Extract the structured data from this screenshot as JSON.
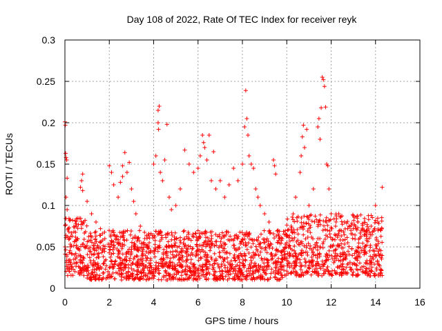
{
  "chart_data": {
    "type": "scatter",
    "title": "Day 108 of 2022, Rate Of TEC Index for receiver reyk",
    "xlabel": "GPS time / hours",
    "ylabel": "ROTI / TECUs",
    "xlim": [
      0,
      16
    ],
    "ylim": [
      0,
      0.3
    ],
    "x_ticks": [
      0,
      2,
      4,
      6,
      8,
      10,
      12,
      14,
      16
    ],
    "x_tick_labels": [
      "0",
      "2",
      "4",
      "6",
      "8",
      "10",
      "12",
      "14",
      "16"
    ],
    "y_ticks": [
      0,
      0.05,
      0.1,
      0.15,
      0.2,
      0.25,
      0.3
    ],
    "y_tick_labels": [
      "0",
      "0.05",
      "0.1",
      "0.15",
      "0.2",
      "0.25",
      "0.3"
    ],
    "grid": true,
    "marker": "+",
    "color": "#ff0000",
    "series": [
      {
        "name": "ROTI",
        "points": [
          [
            0.0,
            0.201
          ],
          [
            0.02,
            0.197
          ],
          [
            0.03,
            0.163
          ],
          [
            0.05,
            0.158
          ],
          [
            0.08,
            0.155
          ],
          [
            0.1,
            0.133
          ],
          [
            0.05,
            0.11
          ],
          [
            0.1,
            0.095
          ],
          [
            0.15,
            0.072
          ],
          [
            0.2,
            0.06
          ],
          [
            0.25,
            0.05
          ],
          [
            0.3,
            0.042
          ],
          [
            0.4,
            0.035
          ],
          [
            0.5,
            0.03
          ],
          [
            0.6,
            0.048
          ],
          [
            0.7,
            0.122
          ],
          [
            0.75,
            0.13
          ],
          [
            0.8,
            0.118
          ],
          [
            0.8,
            0.138
          ],
          [
            1.0,
            0.105
          ],
          [
            1.2,
            0.09
          ],
          [
            1.4,
            0.08
          ],
          [
            1.6,
            0.072
          ],
          [
            1.8,
            0.06
          ],
          [
            2.0,
            0.148
          ],
          [
            2.1,
            0.14
          ],
          [
            2.2,
            0.125
          ],
          [
            2.4,
            0.11
          ],
          [
            2.5,
            0.128
          ],
          [
            2.6,
            0.135
          ],
          [
            2.6,
            0.148
          ],
          [
            2.7,
            0.164
          ],
          [
            2.8,
            0.14
          ],
          [
            2.9,
            0.152
          ],
          [
            3.0,
            0.12
          ],
          [
            3.1,
            0.105
          ],
          [
            3.2,
            0.09
          ],
          [
            3.4,
            0.075
          ],
          [
            3.6,
            0.06
          ],
          [
            3.8,
            0.055
          ],
          [
            4.0,
            0.15
          ],
          [
            4.1,
            0.16
          ],
          [
            4.2,
            0.215
          ],
          [
            4.25,
            0.22
          ],
          [
            4.2,
            0.2
          ],
          [
            4.22,
            0.192
          ],
          [
            4.3,
            0.14
          ],
          [
            4.4,
            0.13
          ],
          [
            4.5,
            0.155
          ],
          [
            4.6,
            0.198
          ],
          [
            4.7,
            0.11
          ],
          [
            4.8,
            0.095
          ],
          [
            5.0,
            0.1
          ],
          [
            5.2,
            0.12
          ],
          [
            5.4,
            0.167
          ],
          [
            5.6,
            0.15
          ],
          [
            5.8,
            0.14
          ],
          [
            6.0,
            0.145
          ],
          [
            6.1,
            0.16
          ],
          [
            6.2,
            0.185
          ],
          [
            6.25,
            0.176
          ],
          [
            6.3,
            0.17
          ],
          [
            6.4,
            0.155
          ],
          [
            6.5,
            0.185
          ],
          [
            6.6,
            0.13
          ],
          [
            6.7,
            0.165
          ],
          [
            6.8,
            0.12
          ],
          [
            7.0,
            0.13
          ],
          [
            7.2,
            0.11
          ],
          [
            7.4,
            0.125
          ],
          [
            7.6,
            0.145
          ],
          [
            7.8,
            0.13
          ],
          [
            8.0,
            0.15
          ],
          [
            8.1,
            0.195
          ],
          [
            8.15,
            0.239
          ],
          [
            8.2,
            0.205
          ],
          [
            8.25,
            0.185
          ],
          [
            8.3,
            0.16
          ],
          [
            8.4,
            0.15
          ],
          [
            8.5,
            0.145
          ],
          [
            8.6,
            0.12
          ],
          [
            8.7,
            0.11
          ],
          [
            8.8,
            0.1
          ],
          [
            9.0,
            0.09
          ],
          [
            9.2,
            0.08
          ],
          [
            9.4,
            0.155
          ],
          [
            9.45,
            0.148
          ],
          [
            9.5,
            0.138
          ],
          [
            9.6,
            0.07
          ],
          [
            9.8,
            0.06
          ],
          [
            10.0,
            0.055
          ],
          [
            10.2,
            0.075
          ],
          [
            10.4,
            0.11
          ],
          [
            10.6,
            0.14
          ],
          [
            10.65,
            0.16
          ],
          [
            10.7,
            0.183
          ],
          [
            10.75,
            0.197
          ],
          [
            10.8,
            0.17
          ],
          [
            10.9,
            0.192
          ],
          [
            11.0,
            0.1
          ],
          [
            11.2,
            0.12
          ],
          [
            11.4,
            0.195
          ],
          [
            11.45,
            0.205
          ],
          [
            11.5,
            0.18
          ],
          [
            11.55,
            0.218
          ],
          [
            11.6,
            0.255
          ],
          [
            11.65,
            0.252
          ],
          [
            11.7,
            0.244
          ],
          [
            11.75,
            0.219
          ],
          [
            11.8,
            0.15
          ],
          [
            11.85,
            0.148
          ],
          [
            11.9,
            0.12
          ],
          [
            12.0,
            0.09
          ],
          [
            12.2,
            0.075
          ],
          [
            12.4,
            0.07
          ],
          [
            12.6,
            0.08
          ],
          [
            12.8,
            0.075
          ],
          [
            13.0,
            0.072
          ],
          [
            13.2,
            0.08
          ],
          [
            13.4,
            0.078
          ],
          [
            13.6,
            0.07
          ],
          [
            13.8,
            0.075
          ],
          [
            14.0,
            0.1
          ],
          [
            14.1,
            0.08
          ],
          [
            14.3,
            0.122
          ]
        ]
      }
    ],
    "dense_band": {
      "description": "dense cloud of points between roughly these ROTI bounds",
      "segments": [
        {
          "x_range": [
            0,
            1
          ],
          "y_range": [
            0.015,
            0.085
          ]
        },
        {
          "x_range": [
            1,
            10
          ],
          "y_range": [
            0.01,
            0.07
          ]
        },
        {
          "x_range": [
            10,
            14.3
          ],
          "y_range": [
            0.015,
            0.09
          ]
        }
      ]
    }
  }
}
